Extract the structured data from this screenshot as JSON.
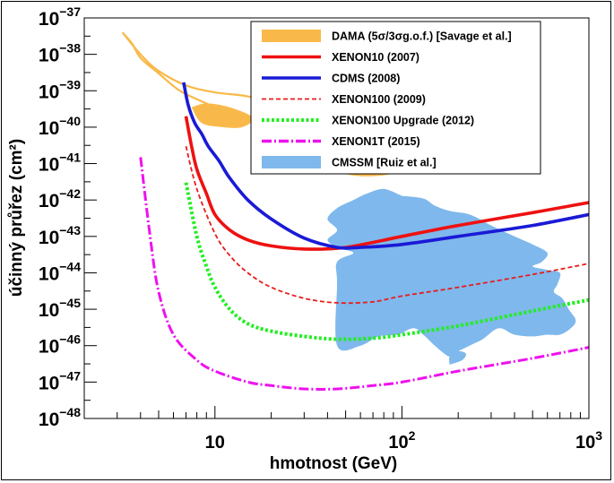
{
  "chart_data": {
    "type": "line",
    "xscale": "log",
    "yscale": "log",
    "xlim": [
      2,
      1000
    ],
    "ylim": [
      1e-48,
      1e-37
    ],
    "xlabel": "hmotnost (GeV)",
    "ylabel": "účinný průřez (cm²)",
    "x_tick_labels": [
      {
        "value": 10,
        "base": "10",
        "exp": ""
      },
      {
        "value": 100,
        "base": "10",
        "exp": "2"
      },
      {
        "value": 1000,
        "base": "10",
        "exp": "3"
      }
    ],
    "y_tick_labels": [
      {
        "value": 1e-37,
        "base": "10",
        "exp": "−37"
      },
      {
        "value": 1e-38,
        "base": "10",
        "exp": "−38"
      },
      {
        "value": 1e-39,
        "base": "10",
        "exp": "−39"
      },
      {
        "value": 1e-40,
        "base": "10",
        "exp": "−40"
      },
      {
        "value": 1e-41,
        "base": "10",
        "exp": "−41"
      },
      {
        "value": 1e-42,
        "base": "10",
        "exp": "−42"
      },
      {
        "value": 1e-43,
        "base": "10",
        "exp": "−43"
      },
      {
        "value": 1e-44,
        "base": "10",
        "exp": "−44"
      },
      {
        "value": 1e-45,
        "base": "10",
        "exp": "−45"
      },
      {
        "value": 1e-46,
        "base": "10",
        "exp": "−46"
      },
      {
        "value": 1e-47,
        "base": "10",
        "exp": "−47"
      },
      {
        "value": 1e-48,
        "base": "10",
        "exp": "−48"
      }
    ],
    "legend_position": "top-right",
    "legend": [
      {
        "label": "DAMA (5σ/3σg.o.f.) [Savage et al.]",
        "color": "#f9b94a",
        "style": "fill"
      },
      {
        "label": "XENON10 (2007)",
        "color": "#ee1111",
        "style": "solid"
      },
      {
        "label": "CDMS (2008)",
        "color": "#1a1ad6",
        "style": "solid"
      },
      {
        "label": "XENON100  (2009)",
        "color": "#e81c1c",
        "style": "dashed"
      },
      {
        "label": "XENON100 Upgrade  (2012)",
        "color": "#22ee22",
        "style": "dotted"
      },
      {
        "label": "XENON1T  (2015)",
        "color": "#ee11ee",
        "style": "dashdot"
      },
      {
        "label": "CMSSM [Ruiz et al.]",
        "color": "#7fb8ec",
        "style": "fill"
      }
    ],
    "series": [
      {
        "key": "xenon10",
        "color": "#ee1111",
        "width": 3.6,
        "dash": "",
        "points": [
          [
            7,
            2e-40
          ],
          [
            7.5,
            3e-41
          ],
          [
            8,
            7e-42
          ],
          [
            9,
            1.5e-42
          ],
          [
            10,
            4e-43
          ],
          [
            12,
            1.5e-43
          ],
          [
            15,
            8e-44
          ],
          [
            20,
            5.5e-44
          ],
          [
            30,
            4.5e-44
          ],
          [
            50,
            5e-44
          ],
          [
            100,
            1e-43
          ],
          [
            200,
            2e-43
          ],
          [
            500,
            4.5e-43
          ],
          [
            1000,
            8.5e-43
          ]
        ]
      },
      {
        "key": "cdms",
        "color": "#1a1ad6",
        "width": 3.6,
        "dash": "",
        "points": [
          [
            6.8,
            1.7e-39
          ],
          [
            7.2,
            4e-40
          ],
          [
            7.8,
            1.3e-40
          ],
          [
            8.5,
            6.5e-41
          ],
          [
            9.2,
            3e-41
          ],
          [
            10.5,
            1.2e-41
          ],
          [
            12,
            4e-42
          ],
          [
            15,
            1e-42
          ],
          [
            20,
            3e-43
          ],
          [
            30,
            9e-44
          ],
          [
            45,
            5e-44
          ],
          [
            60,
            5e-44
          ],
          [
            100,
            6e-44
          ],
          [
            200,
            1e-43
          ],
          [
            500,
            2e-43
          ],
          [
            1000,
            4e-43
          ]
        ]
      },
      {
        "key": "xenon100_2009",
        "color": "#e81c1c",
        "width": 1.8,
        "dash": "5,3",
        "points": [
          [
            7,
            3e-41
          ],
          [
            8,
            2e-42
          ],
          [
            10,
            1.2e-43
          ],
          [
            12,
            3e-44
          ],
          [
            15,
            1e-44
          ],
          [
            20,
            4e-45
          ],
          [
            30,
            2e-45
          ],
          [
            45,
            1.5e-45
          ],
          [
            70,
            1.6e-45
          ],
          [
            100,
            2.3e-45
          ],
          [
            200,
            4e-45
          ],
          [
            500,
            9e-45
          ],
          [
            1000,
            1.8e-44
          ]
        ]
      },
      {
        "key": "xenon100_upgrade",
        "color": "#22ee22",
        "width": 4,
        "dash": "3,2.5",
        "points": [
          [
            7,
            3e-42
          ],
          [
            8,
            1e-43
          ],
          [
            9,
            1.5e-44
          ],
          [
            10,
            4e-45
          ],
          [
            12,
            1e-45
          ],
          [
            15,
            4e-46
          ],
          [
            20,
            2.5e-46
          ],
          [
            30,
            1.8e-46
          ],
          [
            45,
            1.5e-46
          ],
          [
            70,
            1.6e-46
          ],
          [
            100,
            2e-46
          ],
          [
            200,
            3.5e-46
          ],
          [
            500,
            9e-46
          ],
          [
            1000,
            1.8e-45
          ]
        ]
      },
      {
        "key": "xenon1t",
        "color": "#ee11ee",
        "width": 3,
        "dash": "11,3,2,3",
        "points": [
          [
            4,
            1.5e-41
          ],
          [
            4.5,
            1e-43
          ],
          [
            5,
            3e-45
          ],
          [
            6,
            2e-46
          ],
          [
            8,
            4e-47
          ],
          [
            10,
            2e-47
          ],
          [
            15,
            1e-47
          ],
          [
            20,
            8e-48
          ],
          [
            30,
            6.5e-48
          ],
          [
            45,
            6.5e-48
          ],
          [
            70,
            8e-48
          ],
          [
            100,
            1e-47
          ],
          [
            200,
            2e-47
          ],
          [
            500,
            4.5e-47
          ],
          [
            1000,
            9e-47
          ]
        ]
      }
    ],
    "filled_regions": [
      {
        "key": "dama_3sigma",
        "color": "#f9b94a",
        "opacity": 0.45,
        "points": [
          [
            3.2,
            4e-38
          ],
          [
            3.6,
            2e-38
          ],
          [
            4,
            8e-39
          ],
          [
            5,
            3e-39
          ],
          [
            6.5,
            1e-39
          ],
          [
            9,
            4.5e-40
          ],
          [
            13,
            2e-40
          ],
          [
            18,
            1.1e-40
          ],
          [
            22,
            6e-41
          ],
          [
            25,
            2.5e-41
          ],
          [
            35,
            1.3e-41
          ],
          [
            60,
            7e-42
          ],
          [
            100,
            1e-41
          ],
          [
            140,
            2e-41
          ],
          [
            150,
            2.5e-41
          ],
          [
            110,
            4e-41
          ],
          [
            70,
            3e-41
          ],
          [
            45,
            3.5e-41
          ],
          [
            32,
            7e-41
          ],
          [
            26,
            1.2e-40
          ],
          [
            20,
            4e-40
          ],
          [
            15,
            7e-40
          ],
          [
            10,
            9e-40
          ],
          [
            7,
            1.4e-39
          ],
          [
            5,
            3.5e-39
          ],
          [
            4,
            1e-38
          ],
          [
            3.2,
            4e-38
          ]
        ]
      },
      {
        "key": "dama_5sigma_a",
        "color": "#f9b94a",
        "opacity": 1,
        "points": [
          [
            7.5,
            3.5e-40
          ],
          [
            9,
            4.5e-40
          ],
          [
            12,
            3.5e-40
          ],
          [
            16,
            1.8e-40
          ],
          [
            14,
            1e-40
          ],
          [
            11,
            1e-40
          ],
          [
            8.5,
            1.3e-40
          ],
          [
            7.5,
            3.5e-40
          ]
        ]
      },
      {
        "key": "dama_5sigma_b",
        "color": "#f9b94a",
        "opacity": 1,
        "points": [
          [
            33,
            1.2e-41
          ],
          [
            45,
            6e-42
          ],
          [
            60,
            4.5e-42
          ],
          [
            85,
            5e-42
          ],
          [
            110,
            8e-42
          ],
          [
            120,
            1.2e-41
          ],
          [
            100,
            1.8e-41
          ],
          [
            80,
            1.6e-41
          ],
          [
            60,
            1.4e-41
          ],
          [
            45,
            1.6e-41
          ],
          [
            33,
            1.2e-41
          ]
        ]
      },
      {
        "key": "cmssm_main",
        "color": "#7fb8ec",
        "opacity": 1,
        "points": [
          [
            100,
            1.3e-42
          ],
          [
            130,
            1.1e-42
          ],
          [
            150,
            7e-43
          ],
          [
            180,
            5e-43
          ],
          [
            230,
            4e-43
          ],
          [
            300,
            2e-43
          ],
          [
            400,
            1e-43
          ],
          [
            500,
            6e-44
          ],
          [
            600,
            3.5e-44
          ],
          [
            560,
            2e-44
          ],
          [
            500,
            1.5e-44
          ],
          [
            600,
            1.2e-44
          ],
          [
            700,
            1e-44
          ],
          [
            680,
            5e-45
          ],
          [
            650,
            3e-45
          ],
          [
            720,
            2e-45
          ],
          [
            780,
            1e-45
          ],
          [
            850,
            5e-46
          ],
          [
            800,
            3e-46
          ],
          [
            700,
            2e-46
          ],
          [
            600,
            2e-46
          ],
          [
            500,
            1.8e-46
          ],
          [
            400,
            2e-46
          ],
          [
            330,
            3e-46
          ],
          [
            270,
            1.5e-46
          ],
          [
            230,
            1e-46
          ],
          [
            200,
            7e-47
          ],
          [
            180,
            5e-47
          ],
          [
            150,
            1e-46
          ],
          [
            130,
            2e-46
          ],
          [
            115,
            3e-46
          ],
          [
            95,
            2e-46
          ],
          [
            75,
            1.8e-46
          ],
          [
            60,
            1e-46
          ],
          [
            45,
            1e-46
          ],
          [
            45,
            5e-45
          ],
          [
            45,
            2e-44
          ],
          [
            55,
            3.5e-44
          ],
          [
            45,
            5e-44
          ],
          [
            40,
            8e-44
          ],
          [
            45,
            1.5e-43
          ],
          [
            40,
            3e-43
          ],
          [
            45,
            6e-43
          ],
          [
            55,
            1e-42
          ],
          [
            65,
            1.5e-42
          ],
          [
            80,
            2e-42
          ],
          [
            100,
            1.3e-42
          ]
        ]
      },
      {
        "key": "cmssm_blob",
        "color": "#7fb8ec",
        "opacity": 1,
        "points": [
          [
            180,
            3e-47
          ],
          [
            210,
            4e-47
          ],
          [
            220,
            6e-47
          ],
          [
            200,
            7e-47
          ],
          [
            180,
            5e-47
          ],
          [
            180,
            3e-47
          ]
        ]
      }
    ]
  }
}
